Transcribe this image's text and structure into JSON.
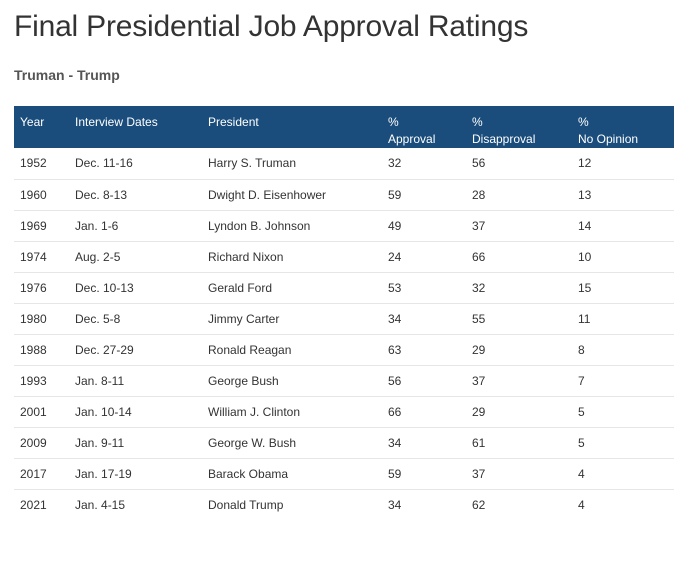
{
  "header": {
    "title": "Final Presidential Job Approval Ratings",
    "subtitle": "Truman - Trump"
  },
  "table": {
    "columns": {
      "year": "Year",
      "dates": "Interview Dates",
      "president": "President",
      "approval_pct": "%",
      "approval": "Approval",
      "disapproval_pct": "%",
      "disapproval": "Disapproval",
      "no_opinion_pct": "%",
      "no_opinion": "No Opinion"
    },
    "rows": [
      {
        "year": "1952",
        "dates": "Dec. 11-16",
        "president": "Harry S. Truman",
        "approval": "32",
        "disapproval": "56",
        "no_opinion": "12"
      },
      {
        "year": "1960",
        "dates": "Dec. 8-13",
        "president": "Dwight D. Eisenhower",
        "approval": "59",
        "disapproval": "28",
        "no_opinion": "13"
      },
      {
        "year": "1969",
        "dates": "Jan. 1-6",
        "president": "Lyndon B. Johnson",
        "approval": "49",
        "disapproval": "37",
        "no_opinion": "14"
      },
      {
        "year": "1974",
        "dates": "Aug. 2-5",
        "president": "Richard Nixon",
        "approval": "24",
        "disapproval": "66",
        "no_opinion": "10"
      },
      {
        "year": "1976",
        "dates": "Dec. 10-13",
        "president": "Gerald Ford",
        "approval": "53",
        "disapproval": "32",
        "no_opinion": "15"
      },
      {
        "year": "1980",
        "dates": "Dec. 5-8",
        "president": "Jimmy Carter",
        "approval": "34",
        "disapproval": "55",
        "no_opinion": "11"
      },
      {
        "year": "1988",
        "dates": "Dec. 27-29",
        "president": "Ronald Reagan",
        "approval": "63",
        "disapproval": "29",
        "no_opinion": "8"
      },
      {
        "year": "1993",
        "dates": "Jan. 8-11",
        "president": "George Bush",
        "approval": "56",
        "disapproval": "37",
        "no_opinion": "7"
      },
      {
        "year": "2001",
        "dates": "Jan. 10-14",
        "president": "William J. Clinton",
        "approval": "66",
        "disapproval": "29",
        "no_opinion": "5"
      },
      {
        "year": "2009",
        "dates": "Jan. 9-11",
        "president": "George W. Bush",
        "approval": "34",
        "disapproval": "61",
        "no_opinion": "5"
      },
      {
        "year": "2017",
        "dates": "Jan. 17-19",
        "president": "Barack Obama",
        "approval": "59",
        "disapproval": "37",
        "no_opinion": "4"
      },
      {
        "year": "2021",
        "dates": "Jan. 4-15",
        "president": "Donald Trump",
        "approval": "34",
        "disapproval": "62",
        "no_opinion": "4"
      }
    ]
  },
  "colors": {
    "header_bg": "#1a4d7c",
    "header_text": "#ffffff",
    "body_text": "#333333",
    "row_divider": "#e6e6e6"
  }
}
